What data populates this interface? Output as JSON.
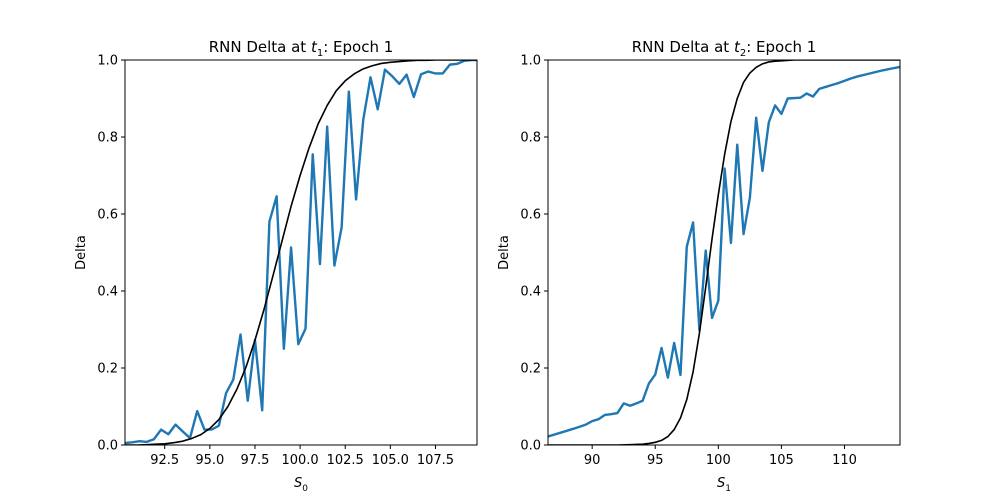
{
  "chart_data": [
    {
      "type": "line",
      "title_prefix": "RNN Delta at ",
      "title_var": "t",
      "title_sub": "1",
      "title_suffix": ": Epoch 1",
      "xlabel_var": "S",
      "xlabel_sub": "0",
      "ylabel": "Delta",
      "xlim": [
        90.3,
        109.8
      ],
      "ylim": [
        0,
        1
      ],
      "xticks": [
        92.5,
        95.0,
        97.5,
        100.0,
        102.5,
        105.0,
        107.5
      ],
      "xtick_labels": [
        "92.5",
        "95.0",
        "97.5",
        "100.0",
        "102.5",
        "105.0",
        "107.5"
      ],
      "yticks": [
        0,
        0.2,
        0.4,
        0.6,
        0.8,
        1.0
      ],
      "ytick_labels": [
        "0.0",
        "0.2",
        "0.4",
        "0.6",
        "0.8",
        "1.0"
      ],
      "grid": false,
      "series": [
        {
          "color": "#1f77b4",
          "x": [
            90.3,
            90.7,
            91.1,
            91.5,
            91.9,
            92.3,
            92.7,
            93.1,
            93.5,
            93.9,
            94.3,
            94.7,
            95.1,
            95.5,
            95.9,
            96.3,
            96.7,
            97.1,
            97.5,
            97.9,
            98.3,
            98.7,
            99.1,
            99.5,
            99.9,
            100.3,
            100.7,
            101.1,
            101.5,
            101.9,
            102.3,
            102.7,
            103.1,
            103.5,
            103.9,
            104.3,
            104.7,
            105.1,
            105.5,
            105.9,
            106.3,
            106.7,
            107.1,
            107.5,
            107.9,
            108.3,
            108.7,
            109.1,
            109.5,
            109.8
          ],
          "values": [
            0.005,
            0.007,
            0.01,
            0.008,
            0.015,
            0.04,
            0.028,
            0.053,
            0.035,
            0.018,
            0.088,
            0.04,
            0.04,
            0.05,
            0.135,
            0.17,
            0.287,
            0.115,
            0.273,
            0.09,
            0.58,
            0.646,
            0.25,
            0.513,
            0.262,
            0.302,
            0.755,
            0.47,
            0.827,
            0.466,
            0.565,
            0.918,
            0.638,
            0.845,
            0.955,
            0.872,
            0.975,
            0.958,
            0.938,
            0.962,
            0.904,
            0.963,
            0.97,
            0.965,
            0.965,
            0.988,
            0.99,
            0.998,
            1.0,
            1.0
          ]
        },
        {
          "color": "#000000",
          "x": [
            90.3,
            91.0,
            91.5,
            92.0,
            92.5,
            93.0,
            93.5,
            94.0,
            94.5,
            95.0,
            95.5,
            96.0,
            96.5,
            97.0,
            97.5,
            98.0,
            98.5,
            99.0,
            99.5,
            100.0,
            100.5,
            101.0,
            101.5,
            102.0,
            102.5,
            103.0,
            103.5,
            104.0,
            104.5,
            105.0,
            105.5,
            106.0,
            106.5,
            107.0,
            107.5,
            108.0,
            108.5,
            109.0,
            109.5,
            109.8
          ],
          "values": [
            0.0,
            0.0,
            0.001,
            0.002,
            0.003,
            0.006,
            0.01,
            0.017,
            0.027,
            0.043,
            0.066,
            0.1,
            0.145,
            0.202,
            0.272,
            0.352,
            0.44,
            0.53,
            0.62,
            0.7,
            0.772,
            0.834,
            0.882,
            0.92,
            0.946,
            0.964,
            0.977,
            0.985,
            0.991,
            0.994,
            0.996,
            0.998,
            0.999,
            0.999,
            1.0,
            1.0,
            1.0,
            1.0,
            1.0,
            1.0
          ]
        }
      ]
    },
    {
      "type": "line",
      "title_prefix": "RNN Delta at ",
      "title_var": "t",
      "title_sub": "2",
      "title_suffix": ": Epoch 1",
      "xlabel_var": "S",
      "xlabel_sub": "1",
      "ylabel": "Delta",
      "xlim": [
        86.5,
        114.4
      ],
      "ylim": [
        0,
        1
      ],
      "xticks": [
        90,
        95,
        100,
        105,
        110
      ],
      "xtick_labels": [
        "90",
        "95",
        "100",
        "105",
        "110"
      ],
      "yticks": [
        0,
        0.2,
        0.4,
        0.6,
        0.8,
        1.0
      ],
      "ytick_labels": [
        "0.0",
        "0.2",
        "0.4",
        "0.6",
        "0.8",
        "1.0"
      ],
      "grid": false,
      "series": [
        {
          "color": "#1f77b4",
          "x": [
            86.5,
            87.5,
            88.5,
            89.5,
            90.0,
            90.5,
            91.0,
            91.5,
            92.0,
            92.5,
            93.0,
            93.5,
            94.0,
            94.5,
            95.0,
            95.5,
            96.0,
            96.5,
            97.0,
            97.5,
            98.0,
            98.5,
            99.0,
            99.5,
            100.0,
            100.5,
            101.0,
            101.5,
            102.0,
            102.5,
            103.0,
            103.5,
            104.0,
            104.5,
            105.0,
            105.5,
            106.5,
            107.0,
            107.5,
            108.0,
            108.5,
            109.0,
            109.5,
            110.5,
            111.0,
            112.0,
            113.0,
            114.4
          ],
          "values": [
            0.022,
            0.032,
            0.042,
            0.053,
            0.062,
            0.067,
            0.078,
            0.08,
            0.083,
            0.108,
            0.102,
            0.108,
            0.115,
            0.16,
            0.183,
            0.252,
            0.175,
            0.265,
            0.182,
            0.515,
            0.578,
            0.298,
            0.505,
            0.33,
            0.375,
            0.718,
            0.525,
            0.78,
            0.548,
            0.642,
            0.85,
            0.712,
            0.838,
            0.882,
            0.86,
            0.9,
            0.902,
            0.913,
            0.905,
            0.925,
            0.93,
            0.935,
            0.94,
            0.952,
            0.957,
            0.965,
            0.973,
            0.982
          ]
        },
        {
          "color": "#000000",
          "x": [
            86.5,
            90.0,
            92.0,
            93.0,
            94.0,
            94.5,
            95.0,
            95.5,
            96.0,
            96.5,
            97.0,
            97.5,
            98.0,
            98.5,
            99.0,
            99.5,
            100.0,
            100.5,
            101.0,
            101.5,
            102.0,
            102.5,
            103.0,
            103.5,
            104.0,
            104.5,
            105.0,
            106.0,
            107.0,
            108.0,
            110.0,
            114.4
          ],
          "values": [
            0.0,
            0.0,
            0.0,
            0.001,
            0.002,
            0.004,
            0.007,
            0.012,
            0.022,
            0.04,
            0.07,
            0.118,
            0.19,
            0.29,
            0.41,
            0.535,
            0.65,
            0.755,
            0.84,
            0.9,
            0.942,
            0.966,
            0.981,
            0.99,
            0.995,
            0.997,
            0.998,
            1.0,
            1.0,
            1.0,
            1.0,
            1.0
          ]
        }
      ]
    }
  ]
}
